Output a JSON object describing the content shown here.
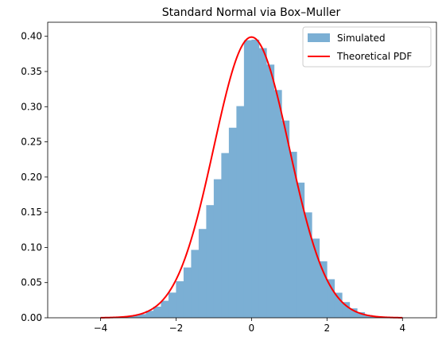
{
  "chart_data": {
    "type": "bar",
    "title": "Standard Normal via Box–Muller",
    "xlabel": "",
    "ylabel": "",
    "xlim": [
      -5.4,
      4.9
    ],
    "ylim": [
      0,
      0.42
    ],
    "x_ticks": [
      -4,
      -2,
      0,
      2,
      4
    ],
    "x_tick_labels": [
      "−4",
      "−2",
      "0",
      "2",
      "4"
    ],
    "y_ticks": [
      0.0,
      0.05,
      0.1,
      0.15,
      0.2,
      0.25,
      0.3,
      0.35,
      0.4
    ],
    "y_tick_labels": [
      "0.00",
      "0.05",
      "0.10",
      "0.15",
      "0.20",
      "0.25",
      "0.30",
      "0.35",
      "0.40"
    ],
    "grid": false,
    "legend_position": "top-right",
    "series": [
      {
        "name": "Simulated",
        "kind": "histogram",
        "color": "#7bafd4",
        "bins": [
          [
            -4.0,
            -3.8,
            0.0003
          ],
          [
            -3.8,
            -3.6,
            0.0007
          ],
          [
            -3.6,
            -3.4,
            0.0012
          ],
          [
            -3.4,
            -3.2,
            0.002
          ],
          [
            -3.2,
            -3.0,
            0.0032
          ],
          [
            -3.0,
            -2.8,
            0.0052
          ],
          [
            -2.8,
            -2.6,
            0.0099
          ],
          [
            -2.6,
            -2.4,
            0.0158
          ],
          [
            -2.4,
            -2.2,
            0.0242
          ],
          [
            -2.2,
            -2.0,
            0.0358
          ],
          [
            -2.0,
            -1.8,
            0.0519
          ],
          [
            -1.8,
            -1.6,
            0.0715
          ],
          [
            -1.6,
            -1.4,
            0.0965
          ],
          [
            -1.4,
            -1.2,
            0.1262
          ],
          [
            -1.2,
            -1.0,
            0.1601
          ],
          [
            -1.0,
            -0.8,
            0.1969
          ],
          [
            -0.8,
            -0.6,
            0.2341
          ],
          [
            -0.6,
            -0.4,
            0.2701
          ],
          [
            -0.4,
            -0.2,
            0.3008
          ],
          [
            -0.2,
            0.0,
            0.3945
          ],
          [
            0.0,
            0.2,
            0.3953
          ],
          [
            0.2,
            0.4,
            0.3832
          ],
          [
            0.4,
            0.6,
            0.3598
          ],
          [
            0.6,
            0.8,
            0.3237
          ],
          [
            0.8,
            1.0,
            0.2803
          ],
          [
            1.0,
            1.2,
            0.2359
          ],
          [
            1.2,
            1.4,
            0.1921
          ],
          [
            1.4,
            1.6,
            0.1498
          ],
          [
            1.6,
            1.8,
            0.1125
          ],
          [
            1.8,
            2.0,
            0.0803
          ],
          [
            2.0,
            2.2,
            0.0548
          ],
          [
            2.2,
            2.4,
            0.0356
          ],
          [
            2.4,
            2.6,
            0.0223
          ],
          [
            2.6,
            2.8,
            0.0134
          ],
          [
            2.8,
            3.0,
            0.0079
          ],
          [
            3.0,
            3.2,
            0.0039
          ],
          [
            3.2,
            3.4,
            0.0021
          ],
          [
            3.4,
            3.6,
            0.0011
          ],
          [
            3.6,
            3.8,
            0.0006
          ],
          [
            3.8,
            4.0,
            0.0002
          ]
        ]
      },
      {
        "name": "Theoretical PDF",
        "kind": "line",
        "color": "#ff0000",
        "function": "standard normal pdf",
        "domain": [
          -4,
          4
        ]
      }
    ]
  }
}
